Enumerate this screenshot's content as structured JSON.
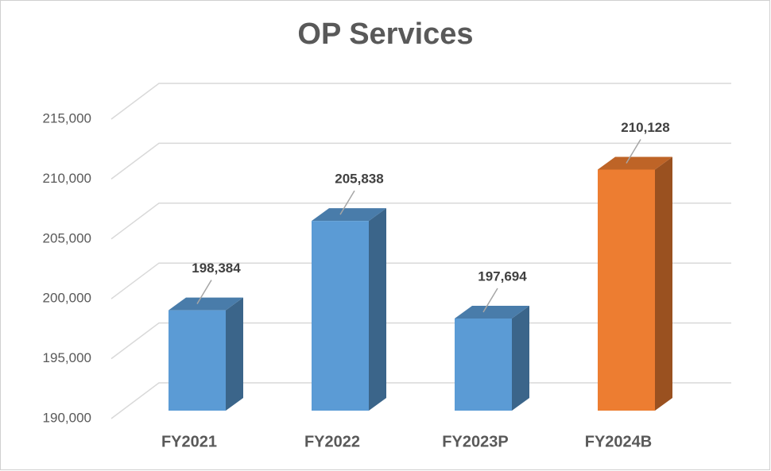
{
  "chart_data": {
    "type": "bar3d",
    "title": "OP Services",
    "categories": [
      "FY2021",
      "FY2022",
      "FY2023P",
      "FY2024B"
    ],
    "values": [
      198384,
      205838,
      197694,
      210128
    ],
    "value_labels": [
      "198,384",
      "205,838",
      "197,694",
      "210,128"
    ],
    "colors": [
      "#5b9bd5",
      "#5b9bd5",
      "#5b9bd5",
      "#ed7d31"
    ],
    "ylim": [
      190000,
      215000
    ],
    "yticks": [
      {
        "value": 190000,
        "label": "190,000"
      },
      {
        "value": 195000,
        "label": "195,000"
      },
      {
        "value": 200000,
        "label": "200,000"
      },
      {
        "value": 205000,
        "label": "205,000"
      },
      {
        "value": 210000,
        "label": "210,000"
      },
      {
        "value": 215000,
        "label": "215,000"
      }
    ],
    "grid": true
  }
}
